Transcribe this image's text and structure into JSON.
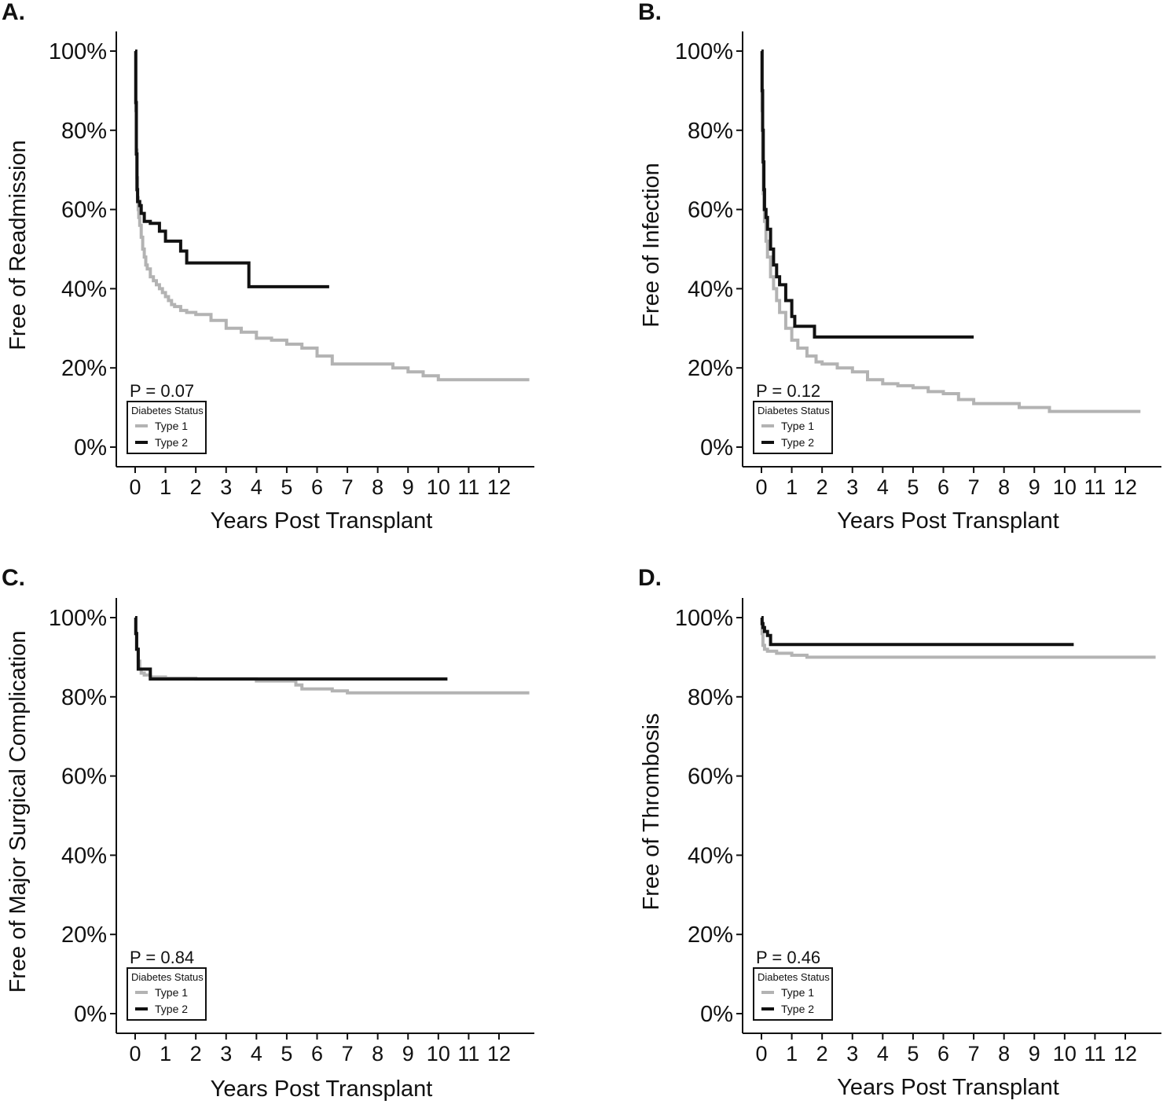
{
  "chart_data": [
    {
      "panel": "A.",
      "type": "line",
      "xlabel": "Years Post Transplant",
      "ylabel": "Free of Readmission",
      "xticks": [
        "0",
        "1",
        "2",
        "3",
        "4",
        "5",
        "6",
        "7",
        "8",
        "9",
        "10",
        "11",
        "12"
      ],
      "yticks": [
        "0%",
        "20%",
        "40%",
        "60%",
        "80%",
        "100%"
      ],
      "xlim": [
        -0.5,
        13.2
      ],
      "ylim": [
        -0.05,
        1.05
      ],
      "pvalue": "P = 0.07",
      "legend": {
        "title": "Diabetes Status",
        "position": "bottom-left"
      },
      "series": [
        {
          "name": "Type 1",
          "color": "#b3b3b3",
          "x": [
            0,
            0.02,
            0.04,
            0.06,
            0.08,
            0.1,
            0.12,
            0.15,
            0.2,
            0.25,
            0.3,
            0.35,
            0.4,
            0.5,
            0.6,
            0.7,
            0.8,
            0.9,
            1.0,
            1.1,
            1.2,
            1.3,
            1.5,
            1.7,
            2.0,
            2.5,
            3.0,
            3.5,
            4.0,
            4.5,
            5.0,
            5.5,
            6.0,
            6.5,
            7.0,
            7.5,
            8.0,
            8.5,
            9.0,
            9.5,
            10.0,
            11.0,
            12.0,
            13.0
          ],
          "y": [
            1.0,
            0.85,
            0.75,
            0.68,
            0.63,
            0.6,
            0.58,
            0.56,
            0.53,
            0.5,
            0.48,
            0.46,
            0.45,
            0.43,
            0.42,
            0.41,
            0.4,
            0.39,
            0.38,
            0.37,
            0.36,
            0.355,
            0.345,
            0.34,
            0.335,
            0.32,
            0.3,
            0.29,
            0.275,
            0.27,
            0.26,
            0.25,
            0.23,
            0.21,
            0.21,
            0.21,
            0.21,
            0.2,
            0.19,
            0.18,
            0.17,
            0.17,
            0.17,
            0.17
          ]
        },
        {
          "name": "Type 2",
          "color": "#111111",
          "x": [
            0,
            0.02,
            0.04,
            0.06,
            0.08,
            0.1,
            0.15,
            0.2,
            0.3,
            0.5,
            0.8,
            1.0,
            1.5,
            1.7,
            3.75,
            6.4
          ],
          "y": [
            1.0,
            0.87,
            0.74,
            0.65,
            0.62,
            0.62,
            0.61,
            0.59,
            0.57,
            0.565,
            0.545,
            0.52,
            0.495,
            0.465,
            0.405,
            0.405
          ]
        }
      ]
    },
    {
      "panel": "B.",
      "type": "line",
      "xlabel": "Years Post Transplant",
      "ylabel": "Free of Infection",
      "xticks": [
        "0",
        "1",
        "2",
        "3",
        "4",
        "5",
        "6",
        "7",
        "8",
        "9",
        "10",
        "11",
        "12"
      ],
      "yticks": [
        "0%",
        "20%",
        "40%",
        "60%",
        "80%",
        "100%"
      ],
      "xlim": [
        -0.5,
        13.2
      ],
      "ylim": [
        -0.05,
        1.05
      ],
      "pvalue": "P = 0.12",
      "legend": {
        "title": "Diabetes Status",
        "position": "bottom-left"
      },
      "series": [
        {
          "name": "Type 1",
          "color": "#b3b3b3",
          "x": [
            0,
            0.02,
            0.04,
            0.06,
            0.08,
            0.1,
            0.15,
            0.2,
            0.3,
            0.4,
            0.5,
            0.6,
            0.8,
            1.0,
            1.2,
            1.5,
            1.8,
            2.0,
            2.5,
            3.0,
            3.5,
            4.0,
            4.5,
            5.0,
            5.5,
            6.0,
            6.5,
            7.0,
            7.5,
            8.0,
            8.5,
            9.0,
            9.5,
            10.0,
            11.0,
            12.0,
            12.5
          ],
          "y": [
            1.0,
            0.85,
            0.72,
            0.64,
            0.6,
            0.57,
            0.52,
            0.48,
            0.43,
            0.4,
            0.37,
            0.34,
            0.3,
            0.27,
            0.25,
            0.23,
            0.215,
            0.21,
            0.2,
            0.19,
            0.17,
            0.16,
            0.155,
            0.15,
            0.14,
            0.135,
            0.12,
            0.11,
            0.11,
            0.11,
            0.1,
            0.1,
            0.09,
            0.09,
            0.09,
            0.09,
            0.09
          ]
        },
        {
          "name": "Type 2",
          "color": "#111111",
          "x": [
            0,
            0.02,
            0.04,
            0.06,
            0.08,
            0.1,
            0.15,
            0.2,
            0.3,
            0.4,
            0.5,
            0.6,
            0.8,
            1.0,
            1.1,
            1.75,
            7.0
          ],
          "y": [
            1.0,
            0.9,
            0.8,
            0.72,
            0.65,
            0.6,
            0.58,
            0.55,
            0.5,
            0.46,
            0.43,
            0.41,
            0.37,
            0.33,
            0.305,
            0.278,
            0.278
          ]
        }
      ]
    },
    {
      "panel": "C.",
      "type": "line",
      "xlabel": "Years Post Transplant",
      "ylabel": "Free of Major Surgical Complication",
      "xticks": [
        "0",
        "1",
        "2",
        "3",
        "4",
        "5",
        "6",
        "7",
        "8",
        "9",
        "10",
        "11",
        "12"
      ],
      "yticks": [
        "0%",
        "20%",
        "40%",
        "60%",
        "80%",
        "100%"
      ],
      "xlim": [
        -0.5,
        13.2
      ],
      "ylim": [
        -0.05,
        1.05
      ],
      "pvalue": "P = 0.84",
      "legend": {
        "title": "Diabetes Status",
        "position": "bottom-left"
      },
      "series": [
        {
          "name": "Type 1",
          "color": "#b3b3b3",
          "x": [
            0,
            0.02,
            0.05,
            0.1,
            0.15,
            0.2,
            0.3,
            0.5,
            1.0,
            2.0,
            3.0,
            4.0,
            5.0,
            5.3,
            5.5,
            6.0,
            6.5,
            7.0,
            8.0,
            9.0,
            10.0,
            11.0,
            12.0,
            13.0
          ],
          "y": [
            1.0,
            0.96,
            0.92,
            0.89,
            0.87,
            0.86,
            0.855,
            0.85,
            0.847,
            0.845,
            0.845,
            0.84,
            0.84,
            0.83,
            0.82,
            0.82,
            0.815,
            0.81,
            0.81,
            0.81,
            0.81,
            0.81,
            0.81,
            0.81
          ]
        },
        {
          "name": "Type 2",
          "color": "#111111",
          "x": [
            0,
            0.02,
            0.05,
            0.1,
            0.2,
            0.5,
            10.3
          ],
          "y": [
            1.0,
            0.96,
            0.92,
            0.87,
            0.87,
            0.845,
            0.845
          ]
        }
      ]
    },
    {
      "panel": "D.",
      "type": "line",
      "xlabel": "Years Post Transplant",
      "ylabel": "Free of Thrombosis",
      "xticks": [
        "0",
        "1",
        "2",
        "3",
        "4",
        "5",
        "6",
        "7",
        "8",
        "9",
        "10",
        "11",
        "12"
      ],
      "yticks": [
        "0%",
        "20%",
        "40%",
        "60%",
        "80%",
        "100%"
      ],
      "xlim": [
        -0.5,
        13.2
      ],
      "ylim": [
        -0.05,
        1.05
      ],
      "pvalue": "P = 0.46",
      "legend": {
        "title": "Diabetes Status",
        "position": "bottom-left"
      },
      "series": [
        {
          "name": "Type 1",
          "color": "#b3b3b3",
          "x": [
            0,
            0.02,
            0.05,
            0.1,
            0.2,
            0.5,
            1.0,
            1.5,
            2.0,
            5.0,
            10.0,
            13.0
          ],
          "y": [
            1.0,
            0.96,
            0.93,
            0.92,
            0.915,
            0.91,
            0.905,
            0.9,
            0.9,
            0.9,
            0.9,
            0.9
          ]
        },
        {
          "name": "Type 2",
          "color": "#111111",
          "x": [
            0,
            0.02,
            0.05,
            0.1,
            0.2,
            0.3,
            10.3
          ],
          "y": [
            1.0,
            0.985,
            0.975,
            0.965,
            0.955,
            0.932,
            0.932
          ]
        }
      ]
    }
  ]
}
